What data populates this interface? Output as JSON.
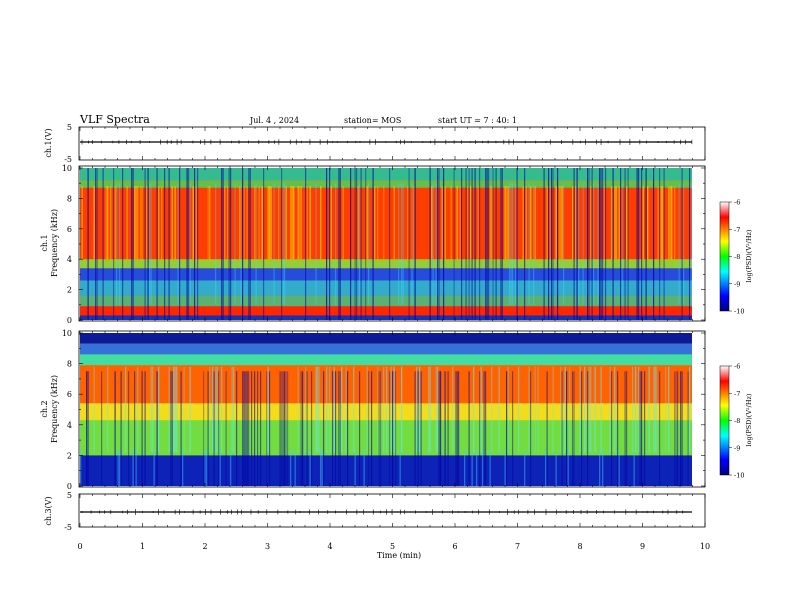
{
  "header": {
    "title": "VLF Spectra",
    "date": "Jul. 4 , 2024",
    "station": "station= MOS",
    "start": "start UT = 7 : 40: 1"
  },
  "chart_data": [
    {
      "type": "line",
      "panel": "ch1-waveform",
      "ylabel": "ch.1(V)",
      "ylim": [
        -5,
        5
      ],
      "yticks": [
        "5",
        "-5"
      ],
      "xlim": [
        0,
        10
      ],
      "series": [
        {
          "x": [
            0,
            9.83
          ],
          "y": [
            0,
            0
          ]
        }
      ]
    },
    {
      "type": "heatmap",
      "panel": "ch1-spectrogram",
      "ylabel": "Frequency (kHz)",
      "ylabel2": "ch.1",
      "ylim": [
        0,
        10
      ],
      "yticks": [
        "0",
        "2",
        "4",
        "6",
        "8",
        "10"
      ],
      "xlim": [
        0,
        10
      ],
      "colorbar": {
        "label": "log(PSD)(V²/Hz)",
        "range": [
          -10,
          -6
        ],
        "ticks": [
          "-6",
          "-7",
          "-8",
          "-9",
          "-10"
        ]
      }
    },
    {
      "type": "heatmap",
      "panel": "ch2-spectrogram",
      "ylabel": "Frequency (kHz)",
      "ylabel2": "ch.2",
      "ylim": [
        0,
        10
      ],
      "yticks": [
        "0",
        "2",
        "4",
        "6",
        "8",
        "10"
      ],
      "xlim": [
        0,
        10
      ],
      "colorbar": {
        "label": "log(PSD)(V²/Hz)",
        "range": [
          -10,
          -6
        ],
        "ticks": [
          "-6",
          "-7",
          "-8",
          "-9",
          "-10"
        ]
      }
    },
    {
      "type": "line",
      "panel": "ch3-waveform",
      "ylabel": "ch.3(V)",
      "ylim": [
        -5,
        5
      ],
      "yticks": [
        "5",
        "-5"
      ],
      "xlim": [
        0,
        10
      ],
      "xlabel": "Time (min)",
      "xticks": [
        "0",
        "1",
        "2",
        "3",
        "4",
        "5",
        "6",
        "7",
        "8",
        "9",
        "10"
      ],
      "series": [
        {
          "x": [
            0,
            9.83
          ],
          "y": [
            0,
            0
          ]
        }
      ]
    }
  ]
}
